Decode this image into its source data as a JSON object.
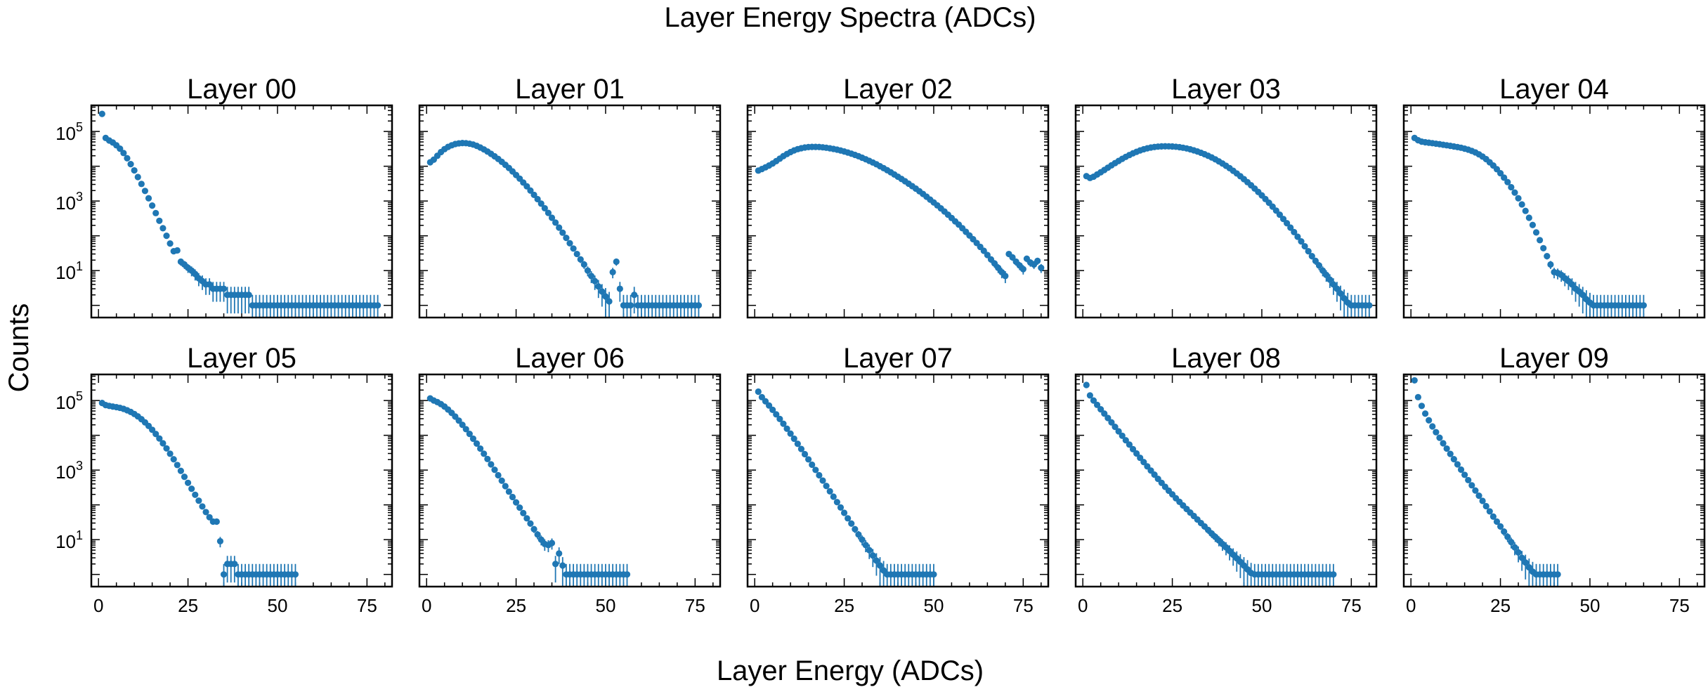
{
  "figure": {
    "suptitle": "Layer Energy Spectra (ADCs)",
    "xlabel": "Layer Energy (ADCs)",
    "ylabel": "Counts",
    "marker_color": "#1f77b4"
  },
  "chart_data": [
    {
      "type": "scatter",
      "title": "Layer 00",
      "xlim": [
        -2,
        82
      ],
      "ylim_log10": [
        -0.35,
        5.75
      ],
      "yscale": "log",
      "xticks": [
        0,
        25,
        50,
        75
      ],
      "ytick_labels": [
        "10^1",
        "10^3",
        "10^5"
      ],
      "y_tick_exponents": [
        1,
        3,
        5
      ],
      "x": [
        1,
        2,
        3,
        4,
        5,
        6,
        7,
        8,
        9,
        10,
        11,
        12,
        13,
        14,
        15,
        16,
        17,
        18,
        19,
        20,
        21,
        22,
        23,
        24,
        25,
        26,
        27,
        28,
        29,
        30,
        31,
        32,
        33,
        34,
        35,
        36,
        37,
        38,
        39,
        40,
        41,
        42,
        43,
        44,
        45,
        46,
        47,
        48,
        49,
        50,
        51,
        52,
        53,
        54,
        55,
        56,
        57,
        58,
        59,
        60,
        61,
        62,
        63,
        64,
        65,
        66,
        67,
        68,
        69,
        70,
        71,
        72,
        73,
        74,
        75,
        76,
        77,
        78
      ],
      "y": [
        320000,
        65000,
        55000,
        48000,
        40000,
        32000,
        24000,
        17000,
        11500,
        7600,
        4900,
        3100,
        1950,
        1200,
        740,
        450,
        270,
        165,
        100,
        60,
        36,
        38,
        18,
        15,
        12,
        10,
        8,
        6,
        5,
        4,
        4,
        3,
        3,
        3,
        3,
        2,
        2,
        2,
        2,
        2,
        2,
        2,
        1,
        1,
        1,
        1,
        1,
        1,
        1,
        1,
        1,
        1,
        1,
        1,
        1,
        1,
        1,
        1,
        1,
        1,
        1,
        1,
        1,
        1,
        1,
        1,
        1,
        1,
        1,
        1,
        1,
        1,
        1,
        1,
        1,
        1,
        1,
        1
      ]
    },
    {
      "type": "scatter",
      "title": "Layer 01",
      "xlim": [
        -2,
        82
      ],
      "ylim_log10": [
        -0.35,
        5.75
      ],
      "yscale": "log",
      "xticks": [
        0,
        25,
        50,
        75
      ],
      "x": [
        1,
        2,
        3,
        4,
        5,
        6,
        7,
        8,
        9,
        10,
        11,
        12,
        13,
        14,
        15,
        16,
        17,
        18,
        19,
        20,
        21,
        22,
        23,
        24,
        25,
        26,
        27,
        28,
        29,
        30,
        31,
        32,
        33,
        34,
        35,
        36,
        37,
        38,
        39,
        40,
        41,
        42,
        43,
        44,
        45,
        46,
        47,
        48,
        49,
        50,
        51,
        52,
        53,
        54,
        55,
        56,
        57,
        58,
        59,
        60,
        61,
        62,
        63,
        64,
        65,
        66,
        67,
        68,
        69,
        70,
        71,
        72,
        73,
        74,
        75,
        76
      ],
      "y": [
        13000,
        15500,
        20000,
        25500,
        31000,
        36000,
        40000,
        43500,
        45500,
        46500,
        46000,
        44500,
        42000,
        38500,
        34500,
        30500,
        26500,
        22700,
        19300,
        16200,
        13400,
        11000,
        8900,
        7100,
        5600,
        4400,
        3400,
        2650,
        2000,
        1500,
        1130,
        840,
        620,
        455,
        330,
        240,
        172,
        123,
        87,
        61,
        43,
        30,
        21,
        15,
        10,
        7,
        5,
        3.5,
        2.5,
        1.8,
        1.3,
        9,
        18,
        3,
        1,
        1,
        1,
        2,
        1,
        1,
        1,
        1,
        1,
        1,
        1,
        1,
        1,
        1,
        1,
        1,
        1,
        1,
        1,
        1,
        1,
        1
      ]
    },
    {
      "type": "scatter",
      "title": "Layer 02",
      "xlim": [
        -2,
        82
      ],
      "ylim_log10": [
        -0.35,
        5.75
      ],
      "yscale": "log",
      "xticks": [
        0,
        25,
        50,
        75
      ],
      "x": [
        1,
        2,
        3,
        4,
        5,
        6,
        7,
        8,
        9,
        10,
        11,
        12,
        13,
        14,
        15,
        16,
        17,
        18,
        19,
        20,
        21,
        22,
        23,
        24,
        25,
        26,
        27,
        28,
        29,
        30,
        31,
        32,
        33,
        34,
        35,
        36,
        37,
        38,
        39,
        40,
        41,
        42,
        43,
        44,
        45,
        46,
        47,
        48,
        49,
        50,
        51,
        52,
        53,
        54,
        55,
        56,
        57,
        58,
        59,
        60,
        61,
        62,
        63,
        64,
        65,
        66,
        67,
        68,
        69,
        70,
        71,
        72,
        73,
        74,
        75,
        76,
        77,
        78,
        79,
        80
      ],
      "y": [
        7500,
        8300,
        9300,
        10500,
        12000,
        14000,
        16500,
        19500,
        22500,
        25500,
        28500,
        31000,
        33000,
        34500,
        35500,
        36000,
        36000,
        35700,
        35000,
        34000,
        32800,
        31500,
        30000,
        28300,
        26600,
        24800,
        23000,
        21200,
        19400,
        17600,
        15900,
        14300,
        12800,
        11400,
        10000,
        8800,
        7700,
        6700,
        5800,
        5000,
        4300,
        3700,
        3150,
        2680,
        2270,
        1910,
        1600,
        1330,
        1100,
        910,
        750,
        615,
        500,
        405,
        325,
        260,
        210,
        165,
        130,
        102,
        80,
        62,
        48,
        37,
        28,
        21,
        16,
        12,
        9,
        7,
        30,
        24,
        18,
        14,
        11,
        22,
        17,
        15,
        19,
        12
      ]
    },
    {
      "type": "scatter",
      "title": "Layer 03",
      "xlim": [
        -2,
        82
      ],
      "ylim_log10": [
        -0.35,
        5.75
      ],
      "yscale": "log",
      "xticks": [
        0,
        25,
        50,
        75
      ],
      "x": [
        1,
        2,
        3,
        4,
        5,
        6,
        7,
        8,
        9,
        10,
        11,
        12,
        13,
        14,
        15,
        16,
        17,
        18,
        19,
        20,
        21,
        22,
        23,
        24,
        25,
        26,
        27,
        28,
        29,
        30,
        31,
        32,
        33,
        34,
        35,
        36,
        37,
        38,
        39,
        40,
        41,
        42,
        43,
        44,
        45,
        46,
        47,
        48,
        49,
        50,
        51,
        52,
        53,
        54,
        55,
        56,
        57,
        58,
        59,
        60,
        61,
        62,
        63,
        64,
        65,
        66,
        67,
        68,
        69,
        70,
        71,
        72,
        73,
        74,
        75,
        76,
        77,
        78,
        79,
        80
      ],
      "y": [
        5200,
        4600,
        5000,
        5800,
        6700,
        7800,
        9100,
        10600,
        12300,
        14200,
        16300,
        18600,
        21000,
        23500,
        26000,
        28500,
        30800,
        32800,
        34500,
        35800,
        36700,
        37200,
        37400,
        37300,
        37000,
        36300,
        35300,
        34000,
        32500,
        30700,
        28700,
        26600,
        24400,
        22200,
        20000,
        17900,
        15800,
        13800,
        12000,
        10300,
        8800,
        7400,
        6200,
        5150,
        4250,
        3480,
        2830,
        2280,
        1820,
        1450,
        1140,
        890,
        690,
        530,
        405,
        305,
        230,
        172,
        128,
        94,
        69,
        50,
        36,
        26,
        19,
        14,
        10,
        7.5,
        5.5,
        4,
        3,
        2.2,
        1.6,
        1.2,
        1,
        1,
        1,
        1,
        1,
        1
      ]
    },
    {
      "type": "scatter",
      "title": "Layer 04",
      "xlim": [
        -2,
        82
      ],
      "ylim_log10": [
        -0.35,
        5.75
      ],
      "yscale": "log",
      "xticks": [
        0,
        25,
        50,
        75
      ],
      "x": [
        1,
        2,
        3,
        4,
        5,
        6,
        7,
        8,
        9,
        10,
        11,
        12,
        13,
        14,
        15,
        16,
        17,
        18,
        19,
        20,
        21,
        22,
        23,
        24,
        25,
        26,
        27,
        28,
        29,
        30,
        31,
        32,
        33,
        34,
        35,
        36,
        37,
        38,
        39,
        40,
        41,
        42,
        43,
        44,
        45,
        46,
        47,
        48,
        49,
        50,
        51,
        52,
        53,
        54,
        55,
        56,
        57,
        58,
        59,
        60,
        61,
        62,
        63,
        64,
        65
      ],
      "y": [
        65000,
        56000,
        51000,
        49000,
        47500,
        46000,
        44500,
        43000,
        41500,
        40000,
        38500,
        37000,
        35500,
        34000,
        32000,
        30000,
        27500,
        25000,
        22000,
        19000,
        16000,
        13000,
        10500,
        8200,
        6300,
        4700,
        3500,
        2500,
        1750,
        1200,
        800,
        520,
        330,
        205,
        125,
        75,
        44,
        26,
        15,
        9,
        8.5,
        7.5,
        6,
        5,
        4,
        3,
        2.5,
        2,
        1.5,
        1.2,
        1,
        1,
        1,
        1,
        1,
        1,
        1,
        1,
        1,
        1,
        1,
        1,
        1,
        1,
        1
      ]
    },
    {
      "type": "scatter",
      "title": "Layer 05",
      "xlim": [
        -2,
        82
      ],
      "ylim_log10": [
        -0.35,
        5.75
      ],
      "yscale": "log",
      "xticks": [
        0,
        25,
        50,
        75
      ],
      "x": [
        1,
        2,
        3,
        4,
        5,
        6,
        7,
        8,
        9,
        10,
        11,
        12,
        13,
        14,
        15,
        16,
        17,
        18,
        19,
        20,
        21,
        22,
        23,
        24,
        25,
        26,
        27,
        28,
        29,
        30,
        31,
        32,
        33,
        34,
        35,
        36,
        37,
        38,
        39,
        40,
        41,
        42,
        43,
        44,
        45,
        46,
        47,
        48,
        49,
        50,
        51,
        52,
        53,
        54,
        55
      ],
      "y": [
        85000,
        74000,
        70000,
        67000,
        64500,
        61500,
        57500,
        52500,
        47000,
        41000,
        35000,
        29000,
        23500,
        18600,
        14400,
        10900,
        8100,
        5900,
        4200,
        2950,
        2050,
        1400,
        950,
        640,
        430,
        290,
        195,
        132,
        90,
        62,
        44,
        33,
        33,
        9,
        1,
        2,
        2,
        2,
        1,
        1,
        1,
        1,
        1,
        1,
        1,
        1,
        1,
        1,
        1,
        1,
        1,
        1,
        1,
        1,
        1
      ]
    },
    {
      "type": "scatter",
      "title": "Layer 06",
      "xlim": [
        -2,
        82
      ],
      "ylim_log10": [
        -0.35,
        5.75
      ],
      "yscale": "log",
      "xticks": [
        0,
        25,
        50,
        75
      ],
      "x": [
        1,
        2,
        3,
        4,
        5,
        6,
        7,
        8,
        9,
        10,
        11,
        12,
        13,
        14,
        15,
        16,
        17,
        18,
        19,
        20,
        21,
        22,
        23,
        24,
        25,
        26,
        27,
        28,
        29,
        30,
        31,
        32,
        33,
        34,
        35,
        36,
        37,
        38,
        39,
        40,
        41,
        42,
        43,
        44,
        45,
        46,
        47,
        48,
        49,
        50,
        51,
        52,
        53,
        54,
        55,
        56
      ],
      "y": [
        115000,
        100000,
        90000,
        79000,
        67000,
        55000,
        44000,
        34500,
        26500,
        20000,
        15000,
        11000,
        8000,
        5800,
        4150,
        2950,
        2080,
        1460,
        1020,
        710,
        495,
        345,
        240,
        168,
        118,
        83,
        58,
        41,
        29,
        20,
        14,
        10,
        7.5,
        7,
        8,
        2,
        4,
        1.8,
        1,
        1,
        1,
        1,
        1,
        1,
        1,
        1,
        1,
        1,
        1,
        1,
        1,
        1,
        1,
        1,
        1,
        1
      ]
    },
    {
      "type": "scatter",
      "title": "Layer 07",
      "xlim": [
        -2,
        82
      ],
      "ylim_log10": [
        -0.35,
        5.75
      ],
      "yscale": "log",
      "xticks": [
        0,
        25,
        50,
        75
      ],
      "x": [
        1,
        2,
        3,
        4,
        5,
        6,
        7,
        8,
        9,
        10,
        11,
        12,
        13,
        14,
        15,
        16,
        17,
        18,
        19,
        20,
        21,
        22,
        23,
        24,
        25,
        26,
        27,
        28,
        29,
        30,
        31,
        32,
        33,
        34,
        35,
        36,
        37,
        38,
        39,
        40,
        41,
        42,
        43,
        44,
        45,
        46,
        47,
        48,
        49,
        50
      ],
      "y": [
        180000,
        125000,
        95000,
        72000,
        54000,
        40000,
        29500,
        21500,
        15500,
        11200,
        8000,
        5700,
        4050,
        2870,
        2030,
        1430,
        1010,
        710,
        500,
        350,
        245,
        172,
        120,
        84,
        59,
        41,
        29,
        20,
        14,
        10,
        7,
        5,
        3.5,
        2.5,
        1.8,
        1.3,
        1,
        1,
        1,
        1,
        1,
        1,
        1,
        1,
        1,
        1,
        1,
        1,
        1,
        1
      ]
    },
    {
      "type": "scatter",
      "title": "Layer 08",
      "xlim": [
        -2,
        82
      ],
      "ylim_log10": [
        -0.35,
        5.75
      ],
      "yscale": "log",
      "xticks": [
        0,
        25,
        50,
        75
      ],
      "x": [
        1,
        2,
        3,
        4,
        5,
        6,
        7,
        8,
        9,
        10,
        11,
        12,
        13,
        14,
        15,
        16,
        17,
        18,
        19,
        20,
        21,
        22,
        23,
        24,
        25,
        26,
        27,
        28,
        29,
        30,
        31,
        32,
        33,
        34,
        35,
        36,
        37,
        38,
        39,
        40,
        41,
        42,
        43,
        44,
        45,
        46,
        47,
        48,
        49,
        50,
        51,
        52,
        53,
        54,
        55,
        56,
        57,
        58,
        59,
        60,
        61,
        62,
        63,
        64,
        65,
        66,
        67,
        68,
        69,
        70
      ],
      "y": [
        280000,
        140000,
        100000,
        75000,
        56000,
        42000,
        31500,
        23500,
        17500,
        13000,
        9700,
        7200,
        5400,
        4000,
        3000,
        2250,
        1700,
        1280,
        970,
        740,
        560,
        430,
        330,
        255,
        200,
        155,
        122,
        96,
        76,
        60,
        48,
        38,
        30,
        24,
        19,
        15,
        12,
        9.5,
        7.5,
        6,
        4.7,
        3.7,
        2.9,
        2.3,
        1.8,
        1.4,
        1.1,
        1,
        1,
        1,
        1,
        1,
        1,
        1,
        1,
        1,
        1,
        1,
        1,
        1,
        1,
        1,
        1,
        1,
        1,
        1,
        1,
        1,
        1,
        1
      ]
    },
    {
      "type": "scatter",
      "title": "Layer 09",
      "xlim": [
        -2,
        82
      ],
      "ylim_log10": [
        -0.35,
        5.75
      ],
      "yscale": "log",
      "xticks": [
        0,
        25,
        50,
        75
      ],
      "x": [
        1,
        2,
        3,
        4,
        5,
        6,
        7,
        8,
        9,
        10,
        11,
        12,
        13,
        14,
        15,
        16,
        17,
        18,
        19,
        20,
        21,
        22,
        23,
        24,
        25,
        26,
        27,
        28,
        29,
        30,
        31,
        32,
        33,
        34,
        35,
        36,
        37,
        38,
        39,
        40,
        41
      ],
      "y": [
        380000,
        125000,
        70000,
        42000,
        27000,
        18000,
        12300,
        8500,
        5900,
        4150,
        2920,
        2060,
        1460,
        1030,
        730,
        515,
        365,
        258,
        183,
        130,
        92,
        65,
        46,
        33,
        24,
        17,
        12,
        8.5,
        6,
        4.3,
        3,
        2.2,
        1.6,
        1.2,
        1,
        1,
        1,
        1,
        1,
        1,
        1
      ]
    }
  ]
}
